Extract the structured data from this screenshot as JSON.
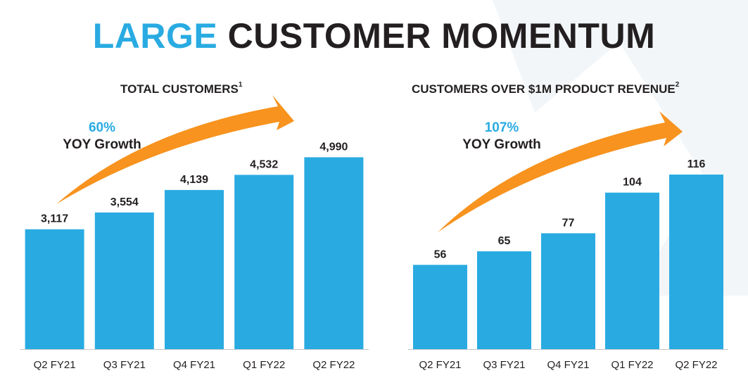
{
  "header": {
    "title_accent": "LARGE",
    "title_rest": "CUSTOMER MOMENTUM"
  },
  "colors": {
    "bar": "#29abe2",
    "arrow": "#f7931e",
    "accent_text": "#29abe2",
    "dark_text": "#231f20"
  },
  "left_panel": {
    "title": "TOTAL CUSTOMERS",
    "footnote": "1",
    "growth_pct": "60%",
    "growth_label": "YOY Growth"
  },
  "right_panel": {
    "title": "CUSTOMERS OVER $1M PRODUCT REVENUE",
    "footnote": "2",
    "growth_pct": "107%",
    "growth_label": "YOY Growth"
  },
  "chart_data": [
    {
      "type": "bar",
      "title": "TOTAL CUSTOMERS",
      "categories": [
        "Q2 FY21",
        "Q3 FY21",
        "Q4 FY21",
        "Q1 FY22",
        "Q2 FY22"
      ],
      "values": [
        3117,
        3554,
        4139,
        4532,
        4990
      ],
      "value_labels": [
        "3,117",
        "3,554",
        "4,139",
        "4,532",
        "4,990"
      ],
      "ylim": [
        0,
        5400
      ],
      "grid": false,
      "annotation": "60% YOY Growth"
    },
    {
      "type": "bar",
      "title": "CUSTOMERS OVER $1M PRODUCT REVENUE",
      "categories": [
        "Q2 FY21",
        "Q3 FY21",
        "Q4 FY21",
        "Q1 FY22",
        "Q2 FY22"
      ],
      "values": [
        56,
        65,
        77,
        104,
        116
      ],
      "value_labels": [
        "56",
        "65",
        "77",
        "104",
        "116"
      ],
      "ylim": [
        0,
        116
      ],
      "grid": false,
      "annotation": "107% YOY Growth"
    }
  ]
}
